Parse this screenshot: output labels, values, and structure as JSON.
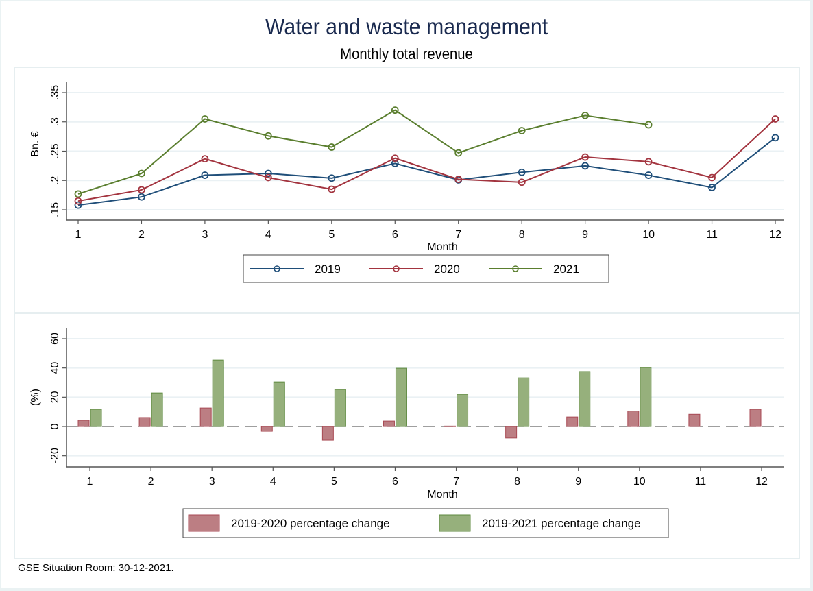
{
  "title": "Water and waste management",
  "subtitle": "Monthly total revenue",
  "footnote": "GSE Situation Room: 30-12-2021.",
  "colors": {
    "2019": "#1f4e79",
    "2020": "#a3343f",
    "2021": "#5a7e2e",
    "bar_2020": "#bc7e83",
    "bar_2020_stroke": "#a84a54",
    "bar_2021": "#96b07c",
    "bar_2021_stroke": "#5f8a3f",
    "grid": "#eaf1f4"
  },
  "chart_data": [
    {
      "type": "line",
      "xlabel": "Month",
      "ylabel": "Bn. €",
      "x": [
        1,
        2,
        3,
        4,
        5,
        6,
        7,
        8,
        9,
        10,
        11,
        12
      ],
      "x_tick_labels": [
        "1",
        "2",
        "3",
        "4",
        "5",
        "6",
        "7",
        "8",
        "9",
        "10",
        "11",
        "12"
      ],
      "ylim": [
        0.15,
        0.35
      ],
      "y_ticks": [
        0.15,
        0.2,
        0.25,
        0.3,
        0.35
      ],
      "y_tick_labels": [
        ".15",
        ".2",
        ".25",
        ".3",
        ".35"
      ],
      "grid": true,
      "legend_position": "bottom",
      "series": [
        {
          "name": "2019",
          "values": [
            0.158,
            0.172,
            0.209,
            0.212,
            0.204,
            0.229,
            0.201,
            0.214,
            0.225,
            0.209,
            0.188,
            0.273
          ]
        },
        {
          "name": "2020",
          "values": [
            0.165,
            0.184,
            0.237,
            0.205,
            0.185,
            0.238,
            0.202,
            0.197,
            0.24,
            0.232,
            0.205,
            0.305
          ]
        },
        {
          "name": "2021",
          "values": [
            0.177,
            0.212,
            0.305,
            0.276,
            0.257,
            0.32,
            0.247,
            0.285,
            0.311,
            0.295,
            null,
            null
          ]
        }
      ]
    },
    {
      "type": "bar",
      "xlabel": "Month",
      "ylabel": "(%)",
      "categories": [
        "1",
        "2",
        "3",
        "4",
        "5",
        "6",
        "7",
        "8",
        "9",
        "10",
        "11",
        "12"
      ],
      "ylim": [
        -25,
        65
      ],
      "y_ticks": [
        -20,
        0,
        20,
        40,
        60
      ],
      "y_tick_labels": [
        "-20",
        "0",
        "20",
        "40",
        "60"
      ],
      "grid": true,
      "reference_line": 0,
      "legend_position": "bottom",
      "series": [
        {
          "name": "2019-2020 percentage change",
          "values": [
            4.2,
            6.1,
            12.6,
            -3.3,
            -9.4,
            3.7,
            0.3,
            -7.9,
            6.5,
            10.5,
            8.3,
            11.7
          ]
        },
        {
          "name": "2019-2021 percentage change",
          "values": [
            11.7,
            22.9,
            45.4,
            30.4,
            25.3,
            39.8,
            22.0,
            33.2,
            37.5,
            40.3,
            null,
            null
          ]
        }
      ]
    }
  ]
}
